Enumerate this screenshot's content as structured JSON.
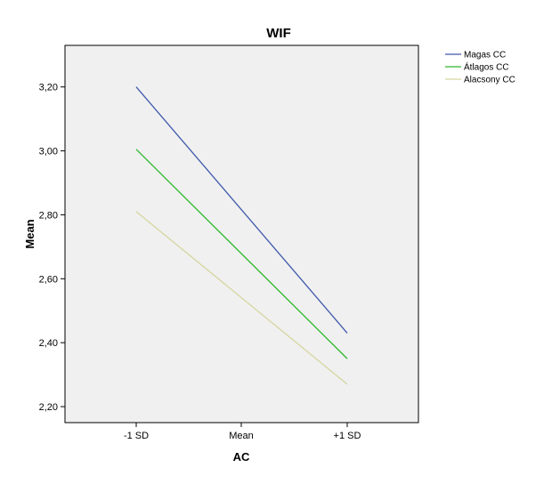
{
  "chart_data": {
    "type": "line",
    "title": "WIF",
    "xlabel": "AC",
    "ylabel": "Mean",
    "categories": [
      "-1 SD",
      "Mean",
      "+1 SD"
    ],
    "y_ticks": [
      "2,20",
      "2,40",
      "2,60",
      "2,80",
      "3,00",
      "3,20"
    ],
    "ylim": [
      2.15,
      3.33
    ],
    "grid": false,
    "legend_placement": "top-right outside plot",
    "background_color": "#f0f0f0",
    "series": [
      {
        "name": "Magas CC",
        "color": "#3e58ac",
        "x": [
          "-1 SD",
          "+1 SD"
        ],
        "values": [
          3.2,
          2.43
        ]
      },
      {
        "name": "Átlagos CC",
        "color": "#2db82d",
        "x": [
          "-1 SD",
          "+1 SD"
        ],
        "values": [
          3.005,
          2.35
        ]
      },
      {
        "name": "Alacsony CC",
        "color": "#d6d5a0",
        "x": [
          "-1 SD",
          "+1 SD"
        ],
        "values": [
          2.81,
          2.27
        ]
      }
    ]
  }
}
